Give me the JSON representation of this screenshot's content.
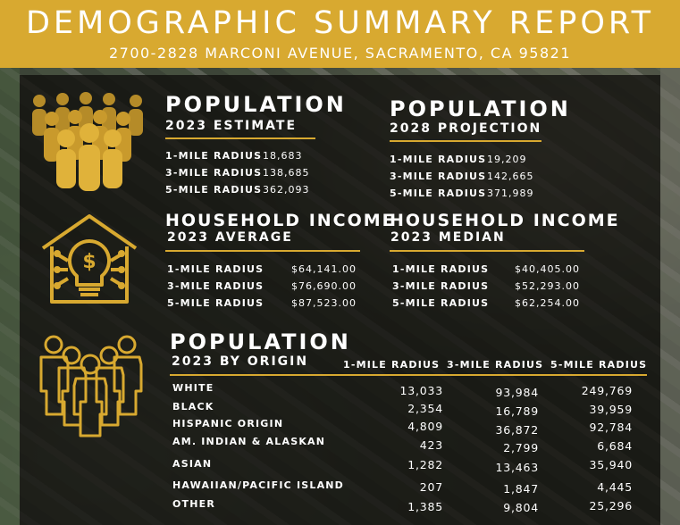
{
  "header": {
    "title": "DEMOGRAPHIC SUMMARY REPORT",
    "subtitle": "2700-2828 MARCONI AVENUE, SACRAMENTO, CA 95821"
  },
  "colors": {
    "accent": "#d8a930",
    "panel": "#0f0e0c",
    "text": "#ffffff"
  },
  "population_2023": {
    "title": "POPULATION",
    "subtitle": "2023 ESTIMATE",
    "rows": [
      {
        "label": "1-MILE RADIUS",
        "value": "18,683"
      },
      {
        "label": "3-MILE RADIUS",
        "value": "138,685"
      },
      {
        "label": "5-MILE RADIUS",
        "value": "362,093"
      }
    ]
  },
  "population_2028": {
    "title": "POPULATION",
    "subtitle": "2028 PROJECTION",
    "rows": [
      {
        "label": "1-MILE RADIUS",
        "value": "19,209"
      },
      {
        "label": "3-MILE RADIUS",
        "value": "142,665"
      },
      {
        "label": "5-MILE RADIUS",
        "value": "371,989"
      }
    ]
  },
  "income_average": {
    "title": "HOUSEHOLD INCOME",
    "subtitle": "2023 AVERAGE",
    "rows": [
      {
        "label": "1-MILE RADIUS",
        "value": "$64,141.00"
      },
      {
        "label": "3-MILE RADIUS",
        "value": "$76,690.00"
      },
      {
        "label": "5-MILE RADIUS",
        "value": "$87,523.00"
      }
    ]
  },
  "income_median": {
    "title": "HOUSEHOLD INCOME",
    "subtitle": "2023 MEDIAN",
    "rows": [
      {
        "label": "1-MILE RADIUS",
        "value": "$40,405.00"
      },
      {
        "label": "3-MILE RADIUS",
        "value": "$52,293.00"
      },
      {
        "label": "5-MILE RADIUS",
        "value": "$62,254.00"
      }
    ]
  },
  "origin": {
    "title": "POPULATION",
    "subtitle": "2023 BY ORIGIN",
    "columns": [
      "1-MILE RADIUS",
      "3-MILE RADIUS",
      "5-MILE RADIUS"
    ],
    "rows": [
      {
        "label": "WHITE",
        "v1": "13,033",
        "v3": "93,984",
        "v5": "249,769"
      },
      {
        "label": "BLACK",
        "v1": "2,354",
        "v3": "16,789",
        "v5": "39,959"
      },
      {
        "label": "HISPANIC ORIGIN",
        "v1": "4,809",
        "v3": "36,872",
        "v5": "92,784"
      },
      {
        "label": "AM. INDIAN & ALASKAN",
        "v1": "423",
        "v3": "2,799",
        "v5": "6,684"
      },
      {
        "label": "ASIAN",
        "v1": "1,282",
        "v3": "13,463",
        "v5": "35,940"
      },
      {
        "label": "HAWAIIAN/PACIFIC ISLAND",
        "v1": "207",
        "v3": "1,847",
        "v5": "4,445"
      },
      {
        "label": "OTHER",
        "v1": "1,385",
        "v3": "9,804",
        "v5": "25,296"
      }
    ]
  },
  "icons": [
    "crowd-icon",
    "house-income-icon",
    "people-outline-icon"
  ]
}
